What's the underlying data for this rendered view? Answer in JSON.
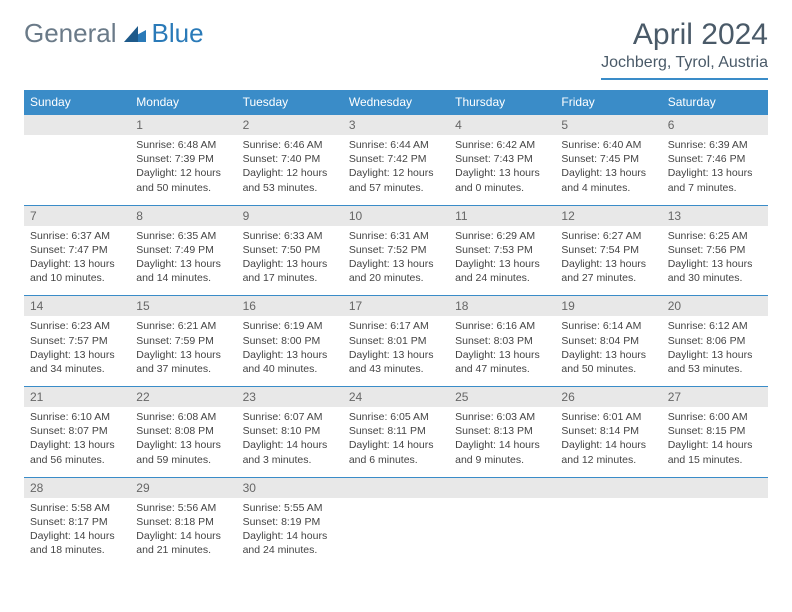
{
  "logo": {
    "text1": "General",
    "text2": "Blue"
  },
  "title": "April 2024",
  "location": "Jochberg, Tyrol, Austria",
  "header_bg": "#3a8cc8",
  "daynames": [
    "Sunday",
    "Monday",
    "Tuesday",
    "Wednesday",
    "Thursday",
    "Friday",
    "Saturday"
  ],
  "weeks": [
    {
      "nums": [
        "",
        "1",
        "2",
        "3",
        "4",
        "5",
        "6"
      ],
      "cells": [
        "",
        "Sunrise: 6:48 AM\nSunset: 7:39 PM\nDaylight: 12 hours and 50 minutes.",
        "Sunrise: 6:46 AM\nSunset: 7:40 PM\nDaylight: 12 hours and 53 minutes.",
        "Sunrise: 6:44 AM\nSunset: 7:42 PM\nDaylight: 12 hours and 57 minutes.",
        "Sunrise: 6:42 AM\nSunset: 7:43 PM\nDaylight: 13 hours and 0 minutes.",
        "Sunrise: 6:40 AM\nSunset: 7:45 PM\nDaylight: 13 hours and 4 minutes.",
        "Sunrise: 6:39 AM\nSunset: 7:46 PM\nDaylight: 13 hours and 7 minutes."
      ]
    },
    {
      "nums": [
        "7",
        "8",
        "9",
        "10",
        "11",
        "12",
        "13"
      ],
      "cells": [
        "Sunrise: 6:37 AM\nSunset: 7:47 PM\nDaylight: 13 hours and 10 minutes.",
        "Sunrise: 6:35 AM\nSunset: 7:49 PM\nDaylight: 13 hours and 14 minutes.",
        "Sunrise: 6:33 AM\nSunset: 7:50 PM\nDaylight: 13 hours and 17 minutes.",
        "Sunrise: 6:31 AM\nSunset: 7:52 PM\nDaylight: 13 hours and 20 minutes.",
        "Sunrise: 6:29 AM\nSunset: 7:53 PM\nDaylight: 13 hours and 24 minutes.",
        "Sunrise: 6:27 AM\nSunset: 7:54 PM\nDaylight: 13 hours and 27 minutes.",
        "Sunrise: 6:25 AM\nSunset: 7:56 PM\nDaylight: 13 hours and 30 minutes."
      ]
    },
    {
      "nums": [
        "14",
        "15",
        "16",
        "17",
        "18",
        "19",
        "20"
      ],
      "cells": [
        "Sunrise: 6:23 AM\nSunset: 7:57 PM\nDaylight: 13 hours and 34 minutes.",
        "Sunrise: 6:21 AM\nSunset: 7:59 PM\nDaylight: 13 hours and 37 minutes.",
        "Sunrise: 6:19 AM\nSunset: 8:00 PM\nDaylight: 13 hours and 40 minutes.",
        "Sunrise: 6:17 AM\nSunset: 8:01 PM\nDaylight: 13 hours and 43 minutes.",
        "Sunrise: 6:16 AM\nSunset: 8:03 PM\nDaylight: 13 hours and 47 minutes.",
        "Sunrise: 6:14 AM\nSunset: 8:04 PM\nDaylight: 13 hours and 50 minutes.",
        "Sunrise: 6:12 AM\nSunset: 8:06 PM\nDaylight: 13 hours and 53 minutes."
      ]
    },
    {
      "nums": [
        "21",
        "22",
        "23",
        "24",
        "25",
        "26",
        "27"
      ],
      "cells": [
        "Sunrise: 6:10 AM\nSunset: 8:07 PM\nDaylight: 13 hours and 56 minutes.",
        "Sunrise: 6:08 AM\nSunset: 8:08 PM\nDaylight: 13 hours and 59 minutes.",
        "Sunrise: 6:07 AM\nSunset: 8:10 PM\nDaylight: 14 hours and 3 minutes.",
        "Sunrise: 6:05 AM\nSunset: 8:11 PM\nDaylight: 14 hours and 6 minutes.",
        "Sunrise: 6:03 AM\nSunset: 8:13 PM\nDaylight: 14 hours and 9 minutes.",
        "Sunrise: 6:01 AM\nSunset: 8:14 PM\nDaylight: 14 hours and 12 minutes.",
        "Sunrise: 6:00 AM\nSunset: 8:15 PM\nDaylight: 14 hours and 15 minutes."
      ]
    },
    {
      "nums": [
        "28",
        "29",
        "30",
        "",
        "",
        "",
        ""
      ],
      "cells": [
        "Sunrise: 5:58 AM\nSunset: 8:17 PM\nDaylight: 14 hours and 18 minutes.",
        "Sunrise: 5:56 AM\nSunset: 8:18 PM\nDaylight: 14 hours and 21 minutes.",
        "Sunrise: 5:55 AM\nSunset: 8:19 PM\nDaylight: 14 hours and 24 minutes.",
        "",
        "",
        "",
        ""
      ]
    }
  ]
}
